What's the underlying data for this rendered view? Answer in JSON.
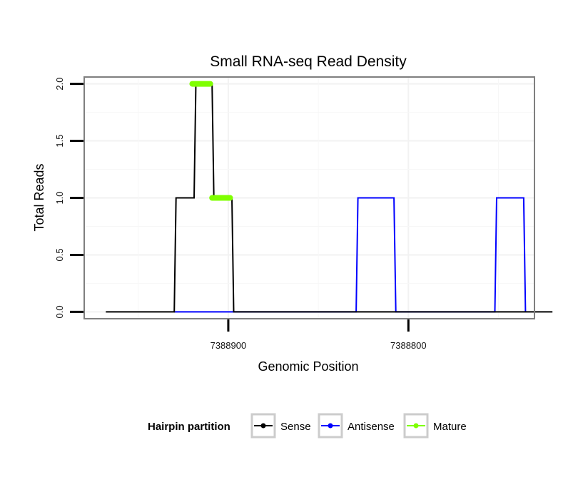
{
  "chart_data": {
    "type": "line",
    "title": "Small RNA-seq Read Density",
    "xlabel": "Genomic Position",
    "ylabel": "Total Reads",
    "xlim": [
      7388980,
      7388730
    ],
    "ylim": [
      -0.06,
      2.06
    ],
    "x_reversed": true,
    "x_ticks": [
      7388900,
      7388800
    ],
    "x_tick_labels": [
      "7388900",
      "7388800"
    ],
    "y_ticks": [
      0,
      0.5,
      1,
      1.5,
      2
    ],
    "y_tick_labels": [
      "0.0",
      "0.5",
      "1.0",
      "1.5",
      "2.0"
    ],
    "grid": true,
    "legend": {
      "title": "Hairpin partition",
      "position": "bottom",
      "entries": [
        {
          "name": "Sense",
          "color": "#000000"
        },
        {
          "name": "Antisense",
          "color": "#0000ff"
        },
        {
          "name": "Mature",
          "color": "#7fff00"
        }
      ]
    },
    "series": [
      {
        "name": "Sense",
        "color": "#000000",
        "x": [
          7388968,
          7388930,
          7388929,
          7388919,
          7388918,
          7388909,
          7388908,
          7388898,
          7388897,
          7388720
        ],
        "y": [
          0,
          0,
          1,
          1,
          2,
          2,
          1,
          1,
          0,
          0
        ]
      },
      {
        "name": "Antisense",
        "color": "#0000ff",
        "x": [
          7388930,
          7388899,
          7388829,
          7388828,
          7388808,
          7388807,
          7388752,
          7388751,
          7388736,
          7388735
        ],
        "y": [
          0,
          0,
          0,
          1,
          1,
          0,
          0,
          1,
          1,
          0
        ]
      },
      {
        "name": "Mature",
        "color": "#7fff00",
        "segments": [
          {
            "x": [
              7388920,
              7388910
            ],
            "y": [
              2,
              2
            ]
          },
          {
            "x": [
              7388909,
              7388899
            ],
            "y": [
              1,
              1
            ]
          }
        ]
      }
    ]
  }
}
